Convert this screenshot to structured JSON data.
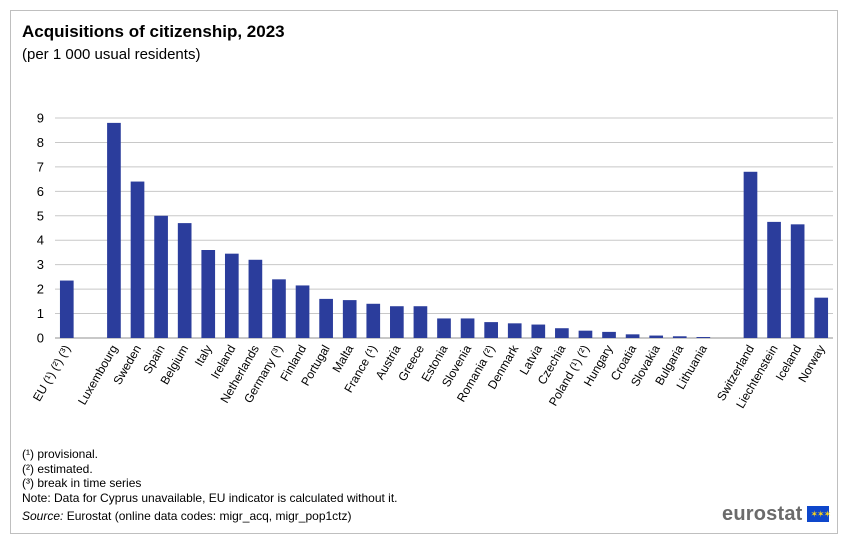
{
  "title": "Acquisitions of citizenship, 2023",
  "subtitle": "(per 1 000 usual residents)",
  "colors": {
    "bar": "#2b3d9c",
    "grid": "#c8c8c8",
    "axis": "#909090",
    "logo_text": "#6b6b6b",
    "flag": "#0e47cb",
    "flag_stars": "#ffd617"
  },
  "chart_data": {
    "type": "bar",
    "categories": [
      "EU (¹) (²) (³)",
      "Luxembourg",
      "Sweden",
      "Spain",
      "Belgium",
      "Italy",
      "Ireland",
      "Netherlands",
      "Germany (³)",
      "Finland",
      "Portugal",
      "Malta",
      "France (¹)",
      "Austria",
      "Greece",
      "Estonia",
      "Slovenia",
      "Romania (²)",
      "Denmark",
      "Latvia",
      "Czechia",
      "Poland (¹) (²)",
      "Hungary",
      "Croatia",
      "Slovakia",
      "Bulgaria",
      "Lithuania",
      "Switzerland",
      "Liechtenstein",
      "Iceland",
      "Norway"
    ],
    "values": [
      2.35,
      8.8,
      6.4,
      5.0,
      4.7,
      3.6,
      3.45,
      3.2,
      2.4,
      2.15,
      1.6,
      1.55,
      1.4,
      1.3,
      1.3,
      0.8,
      0.8,
      0.65,
      0.6,
      0.55,
      0.4,
      0.3,
      0.25,
      0.15,
      0.1,
      0.07,
      0.04,
      6.8,
      4.75,
      4.65,
      1.65
    ],
    "group_breaks_after": [
      "EU (¹) (²) (³)",
      "Lithuania"
    ],
    "ylim": [
      0,
      9
    ],
    "yticks": [
      0,
      1,
      2,
      3,
      4,
      5,
      6,
      7,
      8,
      9
    ],
    "grid": true,
    "legend": false
  },
  "notes": [
    "(¹) provisional.",
    "(²) estimated.",
    "(³) break in time series",
    "Note: Data for Cyprus unavailable, EU indicator is calculated without it."
  ],
  "source": {
    "label": "Source:",
    "text": " Eurostat (online data codes: migr_acq, migr_pop1ctz)"
  },
  "logo": {
    "text": "eurostat",
    "icon": "eu-flag-icon"
  }
}
